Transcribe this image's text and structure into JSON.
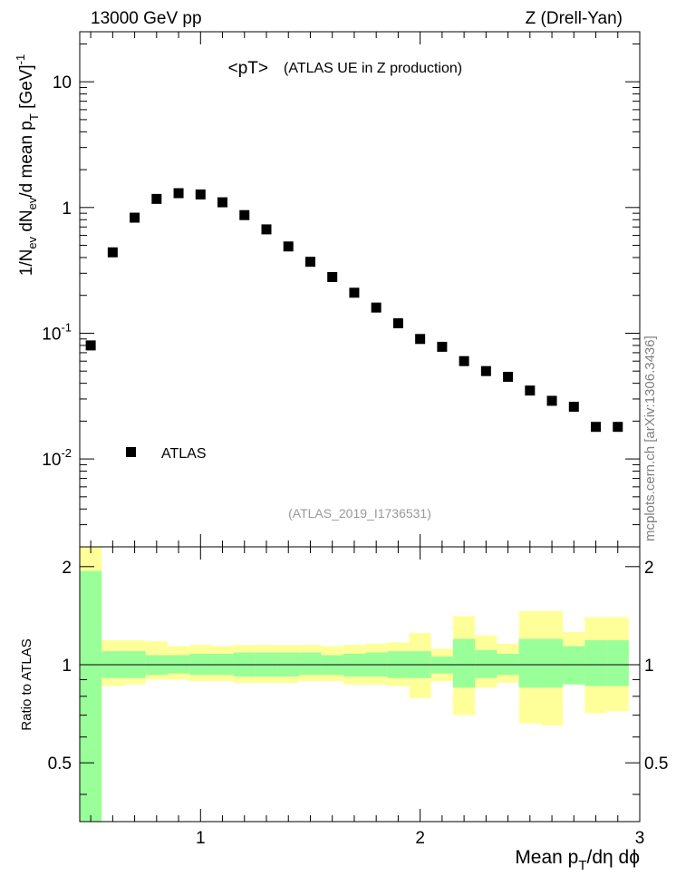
{
  "header": {
    "left": "13000 GeV pp",
    "right": "Z (Drell-Yan)"
  },
  "watermark": "mcplots.cern.ch [arXiv:1306.3436]",
  "chart_data": [
    {
      "type": "scatter",
      "title": "<pT>",
      "subtitle": "(ATLAS UE in Z production)",
      "analysis_tag": "(ATLAS_2019_I1736531)",
      "ylabel": "1/N_ev dN_ev/d mean p_T [GeV]^-1",
      "yscale": "log",
      "xlim": [
        0.45,
        3.0
      ],
      "ylim": [
        0.002,
        25
      ],
      "y_ticks": [
        {
          "value": 10,
          "label": "10"
        },
        {
          "value": 1,
          "label": "1"
        },
        {
          "value": 0.1,
          "label": "10^-1"
        },
        {
          "value": 0.01,
          "label": "10^-2"
        }
      ],
      "legend": {
        "position": "bottom-left",
        "entries": [
          "ATLAS"
        ]
      },
      "series": [
        {
          "name": "ATLAS",
          "color": "#000000",
          "marker": "square",
          "x": [
            0.5,
            0.6,
            0.7,
            0.8,
            0.9,
            1.0,
            1.1,
            1.2,
            1.3,
            1.4,
            1.5,
            1.6,
            1.7,
            1.8,
            1.9,
            2.0,
            2.1,
            2.2,
            2.3,
            2.4,
            2.5,
            2.6,
            2.7,
            2.8,
            2.9
          ],
          "y": [
            0.08,
            0.44,
            0.83,
            1.17,
            1.3,
            1.27,
            1.1,
            0.87,
            0.67,
            0.49,
            0.37,
            0.28,
            0.21,
            0.16,
            0.12,
            0.09,
            0.078,
            0.06,
            0.05,
            0.045,
            0.035,
            0.029,
            0.026,
            0.018,
            0.018
          ]
        }
      ]
    },
    {
      "type": "area",
      "ylabel": "Ratio to ATLAS",
      "xlabel": "Mean p_T/dη dϕ",
      "xlim": [
        0.45,
        3.0
      ],
      "ylim": [
        0.33,
        2.3
      ],
      "x_ticks": [
        {
          "value": 1,
          "label": "1"
        },
        {
          "value": 2,
          "label": "2"
        },
        {
          "value": 3,
          "label": "3"
        }
      ],
      "y_ticks": [
        {
          "value": 2,
          "label": "2"
        },
        {
          "value": 1,
          "label": "1"
        },
        {
          "value": 0.5,
          "label": "0.5"
        }
      ],
      "reference_line": 1,
      "bin_edges": [
        0.45,
        0.55,
        0.65,
        0.75,
        0.85,
        0.95,
        1.05,
        1.15,
        1.25,
        1.35,
        1.45,
        1.55,
        1.65,
        1.75,
        1.85,
        1.95,
        2.05,
        2.15,
        2.25,
        2.35,
        2.45,
        2.55,
        2.65,
        2.75,
        2.85,
        2.95
      ],
      "bands": [
        {
          "name": "total uncertainty",
          "color": "#ffff99",
          "low": [
            0.2,
            0.86,
            0.87,
            0.9,
            0.9,
            0.89,
            0.89,
            0.88,
            0.88,
            0.88,
            0.89,
            0.89,
            0.87,
            0.87,
            0.86,
            0.79,
            0.89,
            0.7,
            0.85,
            0.88,
            0.66,
            0.65,
            0.87,
            0.71,
            0.72,
            0.66
          ],
          "high": [
            2.3,
            1.19,
            1.19,
            1.18,
            1.14,
            1.15,
            1.14,
            1.15,
            1.15,
            1.15,
            1.15,
            1.14,
            1.15,
            1.16,
            1.17,
            1.25,
            1.12,
            1.41,
            1.23,
            1.16,
            1.46,
            1.46,
            1.26,
            1.4,
            1.4,
            1.45
          ]
        },
        {
          "name": "statistical uncertainty",
          "color": "#99ff99",
          "low": [
            0.2,
            0.91,
            0.91,
            0.93,
            0.94,
            0.93,
            0.93,
            0.92,
            0.92,
            0.92,
            0.93,
            0.93,
            0.92,
            0.92,
            0.91,
            0.91,
            0.94,
            0.85,
            0.91,
            0.93,
            0.85,
            0.85,
            0.87,
            0.86,
            0.86,
            0.86
          ],
          "high": [
            1.94,
            1.1,
            1.1,
            1.07,
            1.07,
            1.08,
            1.08,
            1.09,
            1.09,
            1.09,
            1.09,
            1.07,
            1.08,
            1.09,
            1.1,
            1.1,
            1.06,
            1.2,
            1.11,
            1.08,
            1.2,
            1.2,
            1.14,
            1.19,
            1.19,
            1.19
          ]
        }
      ]
    }
  ]
}
